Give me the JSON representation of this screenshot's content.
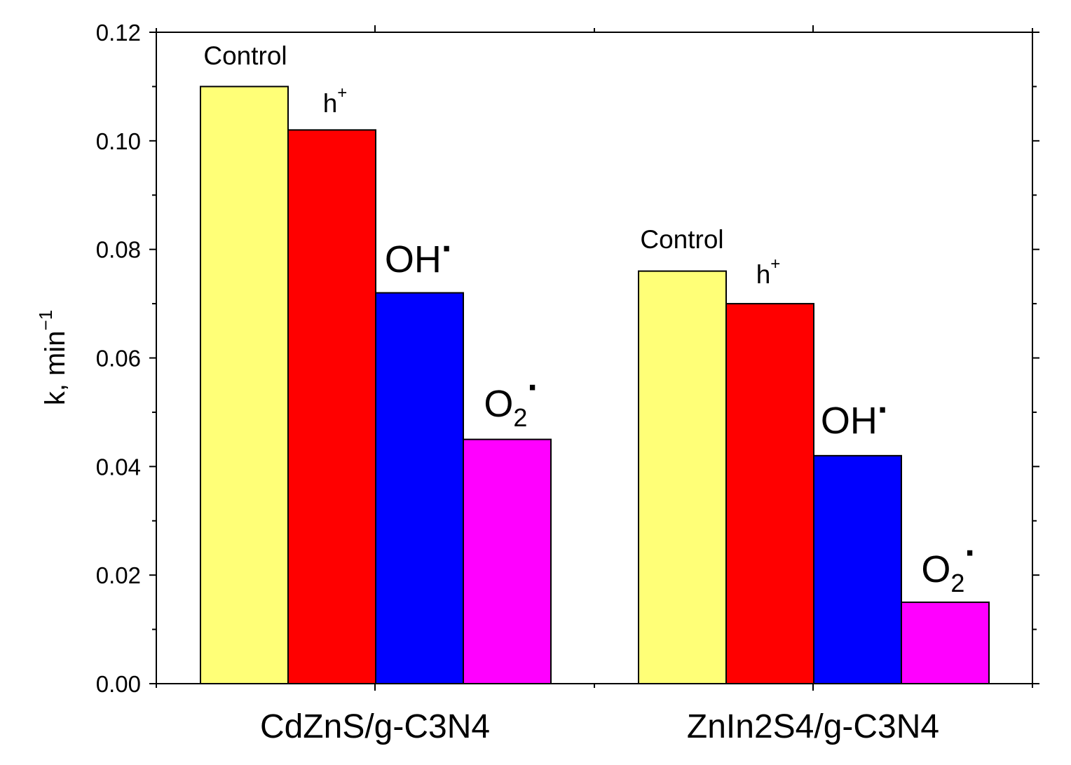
{
  "chart_data": {
    "type": "bar",
    "categories": [
      "CdZnS/g-C3N4",
      "ZnIn2S4/g-C3N4"
    ],
    "series": [
      {
        "name": "Control",
        "color": "#ffff77",
        "values": [
          0.11,
          0.076
        ]
      },
      {
        "name": "h+",
        "color": "#ff0000",
        "values": [
          0.102,
          0.07
        ]
      },
      {
        "name": "OH·",
        "color": "#0000ff",
        "values": [
          0.072,
          0.042
        ]
      },
      {
        "name": "O2·",
        "color": "#ff00ff",
        "values": [
          0.045,
          0.015
        ]
      }
    ],
    "bar_labels": {
      "control": "Control",
      "h": {
        "base": "h",
        "sup": "+"
      },
      "oh": {
        "base": "OH",
        "sup": "·"
      },
      "o2": {
        "base": "O",
        "sub": "2",
        "sup": "·"
      }
    },
    "xlabel": "",
    "ylabel": {
      "base": "k, min",
      "sup": "−1"
    },
    "ylim": [
      0,
      0.12
    ],
    "yticks": [
      "0.00",
      "0.02",
      "0.04",
      "0.06",
      "0.08",
      "0.10",
      "0.12"
    ],
    "grid": false,
    "legend": "none"
  }
}
